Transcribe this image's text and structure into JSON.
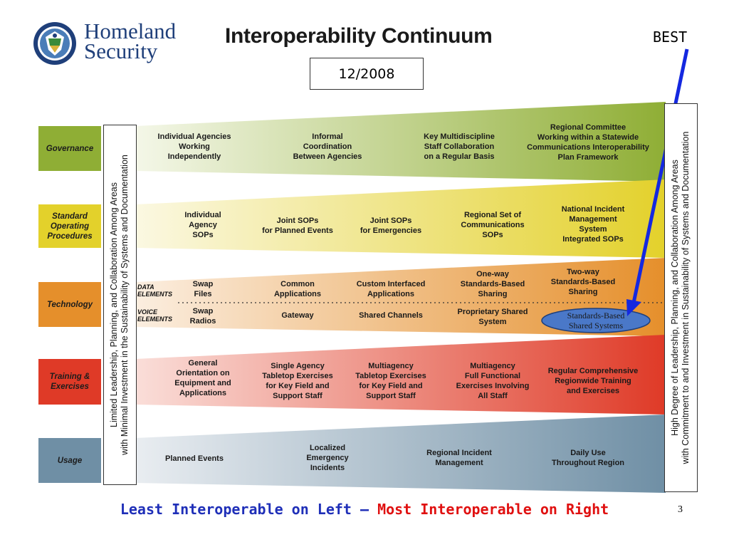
{
  "header": {
    "logo_line1": "Homeland",
    "logo_line2": "Security",
    "seal_text_top": "U.S. DEPARTMENT OF",
    "seal_text_bottom": "HOMELAND SECURITY",
    "title": "Interoperability Continuum",
    "date": "12/2008",
    "best_label": "BEST"
  },
  "left_box": {
    "line1": "Limited Leadership, Planning, and Collaboration Among Areas",
    "line2": "with Minimal Investment in the Sustainability of Systems and Documentation"
  },
  "right_box": {
    "line1": "High Degree of Leadership, Planning, and Collaboration Among Areas",
    "line2": "with Commitment to and Investment in Sustainability of Systems and Documentation"
  },
  "rows": [
    {
      "label": "Governance",
      "color": "#8fae35",
      "cells": [
        "Individual Agencies\nWorking\nIndependently",
        "Informal\nCoordination\nBetween Agencies",
        "Key Multidiscipline\nStaff Collaboration\non a Regular Basis",
        "Regional Committee\nWorking within a Statewide\nCommunications Interoperability\nPlan Framework"
      ]
    },
    {
      "label": "Standard\nOperating\nProcedures",
      "color": "#e3d12b",
      "cells": [
        "Individual\nAgency\nSOPs",
        "Joint SOPs\nfor Planned Events",
        "Joint SOPs\nfor Emergencies",
        "Regional Set of\nCommunications\nSOPs",
        "National Incident\nManagement\nSystem\nIntegrated SOPs"
      ]
    },
    {
      "label": "Technology",
      "color": "#e58f2b",
      "data_label": "DATA\nELEMENTS",
      "voice_label": "VOICE\nELEMENTS",
      "data_cells": [
        "Swap\nFiles",
        "Common\nApplications",
        "Custom Interfaced\nApplications",
        "One-way\nStandards-Based\nSharing",
        "Two-way\nStandards-Based\nSharing"
      ],
      "voice_cells": [
        "Swap\nRadios",
        "Gateway",
        "Shared Channels",
        "Proprietary Shared\nSystem"
      ],
      "highlight": "Standards-Based\nShared Systems",
      "highlight_color": "#4a78c8"
    },
    {
      "label": "Training &\nExercises",
      "color": "#df3a27",
      "cells": [
        "General\nOrientation on\nEquipment and\nApplications",
        "Single Agency\nTabletop Exercises\nfor Key Field and\nSupport Staff",
        "Multiagency\nTabletop Exercises\nfor Key Field and\nSupport Staff",
        "Multiagency\nFull Functional\nExercises Involving\nAll Staff",
        "Regular Comprehensive\nRegionwide Training\nand Exercises"
      ]
    },
    {
      "label": "Usage",
      "color": "#6f8fa5",
      "cells": [
        "Planned Events",
        "Localized\nEmergency\nIncidents",
        "Regional Incident\nManagement",
        "Daily Use\nThroughout Region"
      ]
    }
  ],
  "footer": {
    "least": "Least Interoperable on Left",
    "dash": " – ",
    "most": "Most Interoperable on Right",
    "page_number": "3"
  },
  "colors": {
    "arrow": "#1428e0",
    "logo_blue": "#1f3f7a"
  }
}
